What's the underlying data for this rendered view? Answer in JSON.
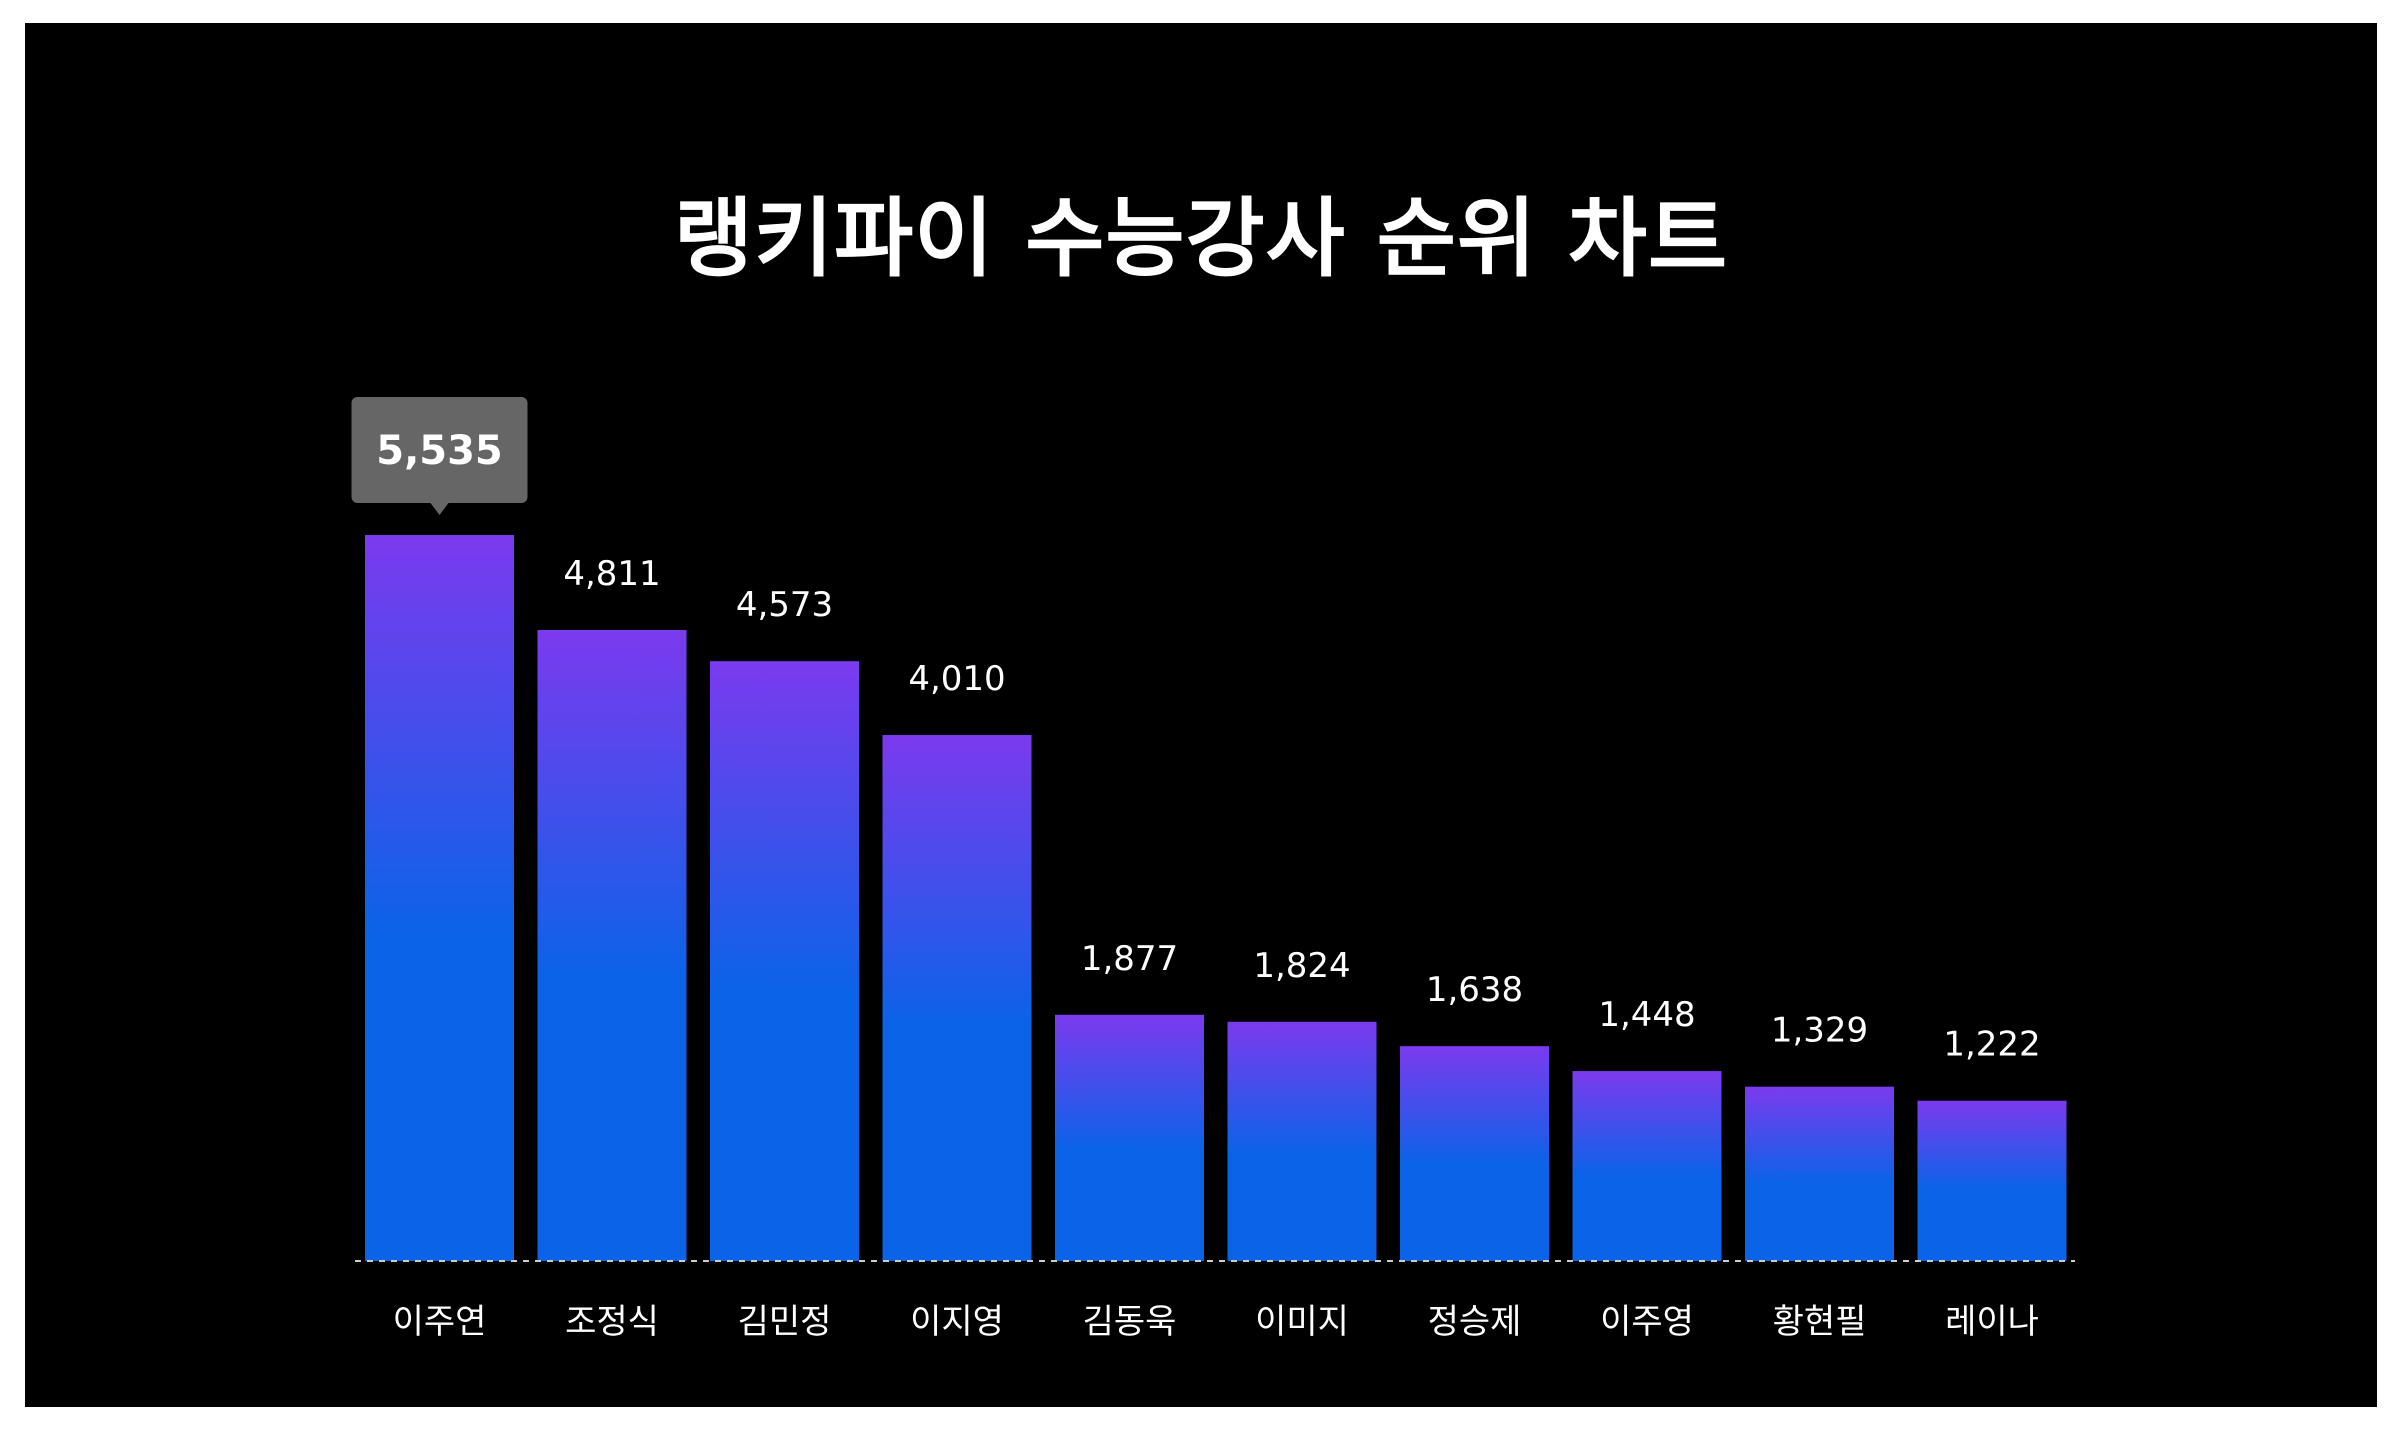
{
  "chart_data": {
    "type": "bar",
    "title": "랭키파이 수능강사 순위 차트",
    "categories": [
      "이주연",
      "조정식",
      "김민정",
      "이지영",
      "김동욱",
      "이미지",
      "정승제",
      "이주영",
      "황현필",
      "레이나"
    ],
    "values": [
      5535,
      4811,
      4573,
      4010,
      1877,
      1824,
      1638,
      1448,
      1329,
      1222
    ],
    "value_labels": [
      "5,535",
      "4,811",
      "4,573",
      "4,010",
      "1,877",
      "1,824",
      "1,638",
      "1,448",
      "1,329",
      "1,222"
    ],
    "highlighted_label": "5,535",
    "ylim": [
      0,
      5535
    ],
    "grid": false,
    "legend": "none",
    "colors": {
      "background": "#000000",
      "bar_top": "#7b3aee",
      "bar_bottom": "#0b63e8",
      "tooltip": "#666666",
      "baseline": "#cccccc",
      "text": "#ffffff"
    }
  }
}
